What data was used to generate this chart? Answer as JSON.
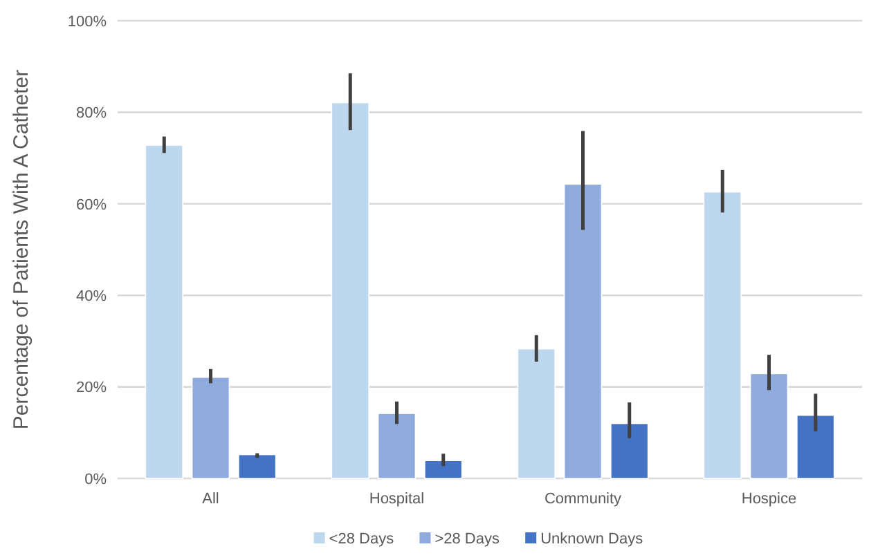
{
  "chart_data": {
    "type": "bar",
    "ylabel": "Percentage of Patients With A Catheter",
    "categories": [
      "All",
      "Hospital",
      "Community",
      "Hospice"
    ],
    "series": [
      {
        "name": "<28 Days",
        "color": "#bdd7ee",
        "values": [
          72.8,
          82.1,
          28.3,
          62.6
        ],
        "errors": [
          [
            71.1,
            74.7
          ],
          [
            76.1,
            88.5
          ],
          [
            25.5,
            31.3
          ],
          [
            58.1,
            67.4
          ]
        ]
      },
      {
        "name": ">28 Days",
        "color": "#8faadc",
        "values": [
          22.1,
          14.2,
          64.3,
          22.9
        ],
        "errors": [
          [
            20.8,
            23.9
          ],
          [
            11.9,
            16.8
          ],
          [
            54.3,
            75.9
          ],
          [
            19.3,
            27.0
          ]
        ]
      },
      {
        "name": "Unknown Days",
        "color": "#4472c4",
        "values": [
          5.2,
          3.9,
          12.0,
          13.8
        ],
        "errors": [
          [
            4.5,
            5.5
          ],
          [
            2.7,
            5.4
          ],
          [
            8.8,
            16.6
          ],
          [
            10.3,
            18.5
          ]
        ]
      }
    ],
    "ylim": [
      0,
      100
    ],
    "yticks": [
      {
        "value": 0,
        "label": "0%"
      },
      {
        "value": 20,
        "label": "20%"
      },
      {
        "value": 40,
        "label": "40%"
      },
      {
        "value": 60,
        "label": "60%"
      },
      {
        "value": 80,
        "label": "80%"
      },
      {
        "value": 100,
        "label": "100%"
      }
    ],
    "grid": "y",
    "legend": "bottom"
  }
}
